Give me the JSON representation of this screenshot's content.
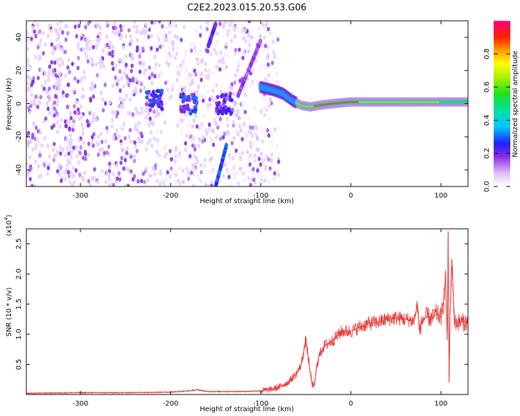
{
  "title": "C2E2.2023.015.20.53.G06",
  "chart_data": [
    {
      "type": "heatmap",
      "xlabel": "Height of straight line (km)",
      "ylabel": "Frequency (Hz)",
      "xlim": [
        -360,
        130
      ],
      "ylim": [
        -50,
        50
      ],
      "xticks": [
        -300,
        -200,
        -100,
        0,
        100
      ],
      "yticks": [
        -40,
        -20,
        0,
        20,
        40
      ],
      "colorbar": {
        "label": "Normalized spectral amplitude",
        "ticks": [
          "0.0",
          "0.2",
          "0.4",
          "0.6",
          "0.8"
        ],
        "tick_values": [
          0,
          0.2,
          0.4,
          0.6,
          0.8
        ],
        "range": [
          0,
          1
        ]
      },
      "features": [
        {
          "kind": "noise",
          "x_range": [
            -360,
            -80
          ],
          "y_range": [
            -50,
            50
          ],
          "amplitude": 0.1
        },
        {
          "kind": "signal_trace",
          "points": [
            [
              -100,
              10
            ],
            [
              -85,
              8
            ],
            [
              -75,
              6
            ],
            [
              -65,
              2
            ],
            [
              -55,
              -1
            ],
            [
              -45,
              -2
            ],
            [
              -35,
              -1
            ],
            [
              -20,
              0
            ],
            [
              0,
              1
            ],
            [
              30,
              1
            ],
            [
              60,
              1
            ],
            [
              80,
              1
            ],
            [
              100,
              1
            ],
            [
              110,
              1
            ],
            [
              130,
              1
            ]
          ],
          "amplitude": 0.75
        },
        {
          "kind": "streak",
          "points": [
            [
              -150,
              -50
            ],
            [
              -138,
              -25
            ]
          ],
          "amplitude": 0.25
        },
        {
          "kind": "streak",
          "points": [
            [
              -158,
              35
            ],
            [
              -150,
              48
            ]
          ],
          "amplitude": 0.2
        },
        {
          "kind": "streak",
          "points": [
            [
              -125,
              5
            ],
            [
              -100,
              38
            ]
          ],
          "amplitude": 0.15
        },
        {
          "kind": "blob",
          "x": -218,
          "y": 2,
          "amplitude": 0.25
        },
        {
          "kind": "blob",
          "x": -180,
          "y": 0,
          "amplitude": 0.25
        },
        {
          "kind": "blob",
          "x": -140,
          "y": 0,
          "amplitude": 0.2
        }
      ]
    },
    {
      "type": "line",
      "xlabel": "Height of straight line (km)",
      "ylabel": "SNR (10 * v/v)",
      "yscale_label": "(x10",
      "yscale_exponent": "4",
      "yscale_suffix": ")",
      "xlim": [
        -360,
        130
      ],
      "ylim": [
        0,
        2.75
      ],
      "xticks": [
        -300,
        -200,
        -100,
        0,
        100
      ],
      "yticks": [
        0.5,
        1.0,
        1.5,
        2.0,
        2.5
      ],
      "ytick_labels": [
        "0.5",
        "1.0",
        "1.5",
        "2.0",
        "2.5"
      ],
      "color": "#e83a3a",
      "series": [
        {
          "x": [
            -360,
            -300,
            -250,
            -200,
            -180,
            -170,
            -160,
            -140,
            -120,
            -100,
            -90,
            -80,
            -70,
            -60,
            -55,
            -50,
            -48,
            -45,
            -42,
            -40,
            -38,
            -35,
            -30,
            -25,
            -20,
            -10,
            0,
            10,
            20,
            30,
            40,
            50,
            60,
            70,
            74,
            76,
            80,
            85,
            90,
            95,
            100,
            103,
            105,
            107,
            108,
            109,
            110,
            112,
            115,
            120,
            130
          ],
          "y": [
            0.02,
            0.03,
            0.03,
            0.04,
            0.06,
            0.08,
            0.05,
            0.05,
            0.05,
            0.06,
            0.08,
            0.12,
            0.2,
            0.35,
            0.5,
            0.9,
            0.7,
            0.35,
            0.12,
            0.2,
            0.45,
            0.65,
            0.8,
            0.85,
            0.9,
            1.05,
            1.05,
            1.12,
            1.18,
            1.2,
            1.25,
            1.27,
            1.25,
            1.22,
            1.5,
            1.05,
            1.25,
            1.3,
            1.25,
            1.35,
            1.28,
            1.55,
            1.95,
            0.9,
            2.7,
            0.2,
            1.3,
            2.25,
            1.2,
            1.2,
            1.2
          ]
        }
      ]
    }
  ]
}
